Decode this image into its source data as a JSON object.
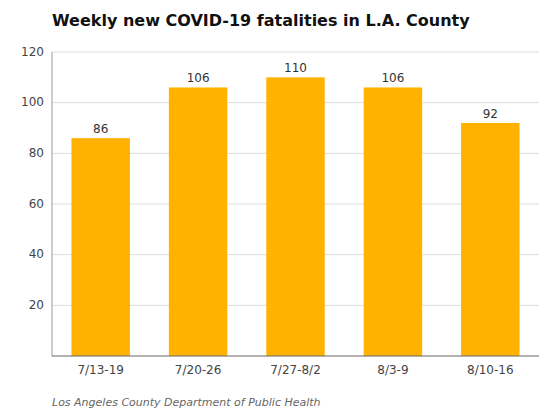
{
  "chart_data": {
    "type": "bar",
    "title": "Weekly new COVID-19 fatalities in L.A. County",
    "annotations": [
      "Los Angeles County Department of Public Health"
    ],
    "categories": [
      "7/13-19",
      "7/20-26",
      "7/27-8/2",
      "8/3-9",
      "8/10-16"
    ],
    "values": [
      86,
      106,
      110,
      106,
      92
    ],
    "color": "#FFB300",
    "ylim": [
      0,
      120
    ],
    "yticks": [
      20,
      40,
      60,
      80,
      100,
      120
    ],
    "grid": true,
    "data_labels": true
  }
}
